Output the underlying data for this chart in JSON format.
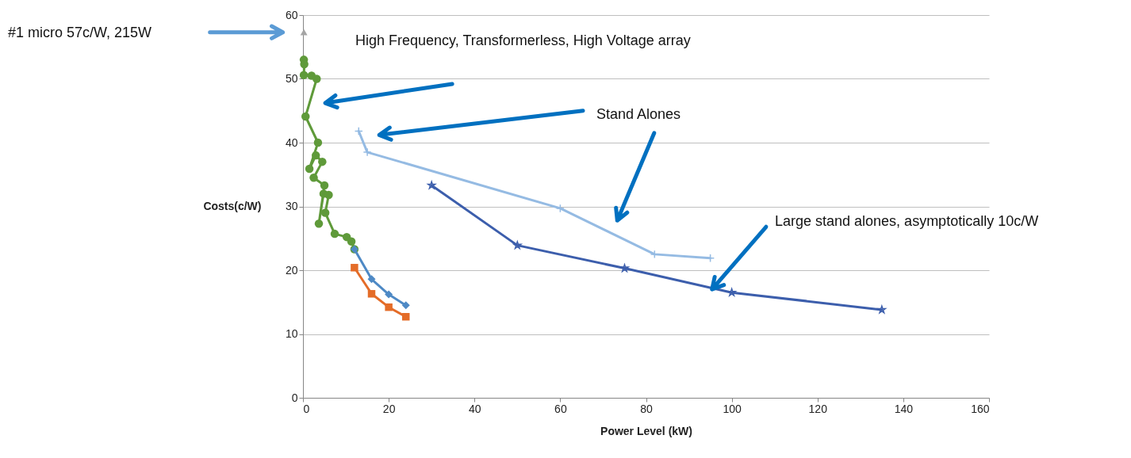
{
  "chart_data": {
    "type": "line",
    "xlabel": "Power Level (kW)",
    "ylabel": "Costs(c/W)",
    "xlim": [
      0,
      160
    ],
    "xticks": [
      0,
      20,
      40,
      60,
      80,
      100,
      120,
      140,
      160
    ],
    "ylim": [
      0,
      60
    ],
    "yticks": [
      0,
      10,
      20,
      30,
      40,
      50,
      60
    ],
    "grid": "y",
    "series": [
      {
        "type": "scatter",
        "color": "#a5a5a5",
        "marker": "triangle",
        "x": [
          0.215
        ],
        "values": [
          57.3
        ]
      },
      {
        "color": "#5f9a3a",
        "marker": "circle",
        "x": [
          0.2,
          0.3,
          0.2,
          2,
          3.2,
          0.6,
          3.5,
          1.5,
          3,
          4.5,
          2.5,
          5,
          3.7,
          4.8,
          6,
          5.2,
          7.4,
          10.2,
          11.3,
          12
        ],
        "values": [
          53,
          52.3,
          50.6,
          50.5,
          50,
          44.1,
          40,
          35.9,
          38,
          37,
          34.5,
          33.3,
          27.3,
          32,
          31.8,
          29,
          25.7,
          25.2,
          24.5,
          23.3
        ]
      },
      {
        "color": "#4e89c5",
        "marker": "diamond",
        "x": [
          12,
          16,
          20,
          24
        ],
        "values": [
          23.3,
          18.6,
          16.2,
          14.5
        ]
      },
      {
        "color": "#e46c28",
        "marker": "square",
        "x": [
          12,
          16,
          20,
          24
        ],
        "values": [
          20.4,
          16.3,
          14.2,
          12.7
        ]
      },
      {
        "color": "#95bbe3",
        "marker": "cross",
        "x": [
          13,
          15,
          60,
          82,
          95
        ],
        "values": [
          41.8,
          38.5,
          29.7,
          22.5,
          21.9
        ]
      },
      {
        "color": "#3c5eac",
        "marker": "star",
        "x": [
          30,
          50,
          75,
          100,
          135
        ],
        "values": [
          33.3,
          23.9,
          20.3,
          16.5,
          13.8
        ]
      }
    ],
    "annotations": [
      "#1 micro 57c/W, 215W",
      "High Frequency, Transformerless, High Voltage array",
      "Stand Alones",
      {
        "text": "Large stand alones, asymptotically 10c/W",
        "x": 95,
        "y": 17
      }
    ]
  }
}
